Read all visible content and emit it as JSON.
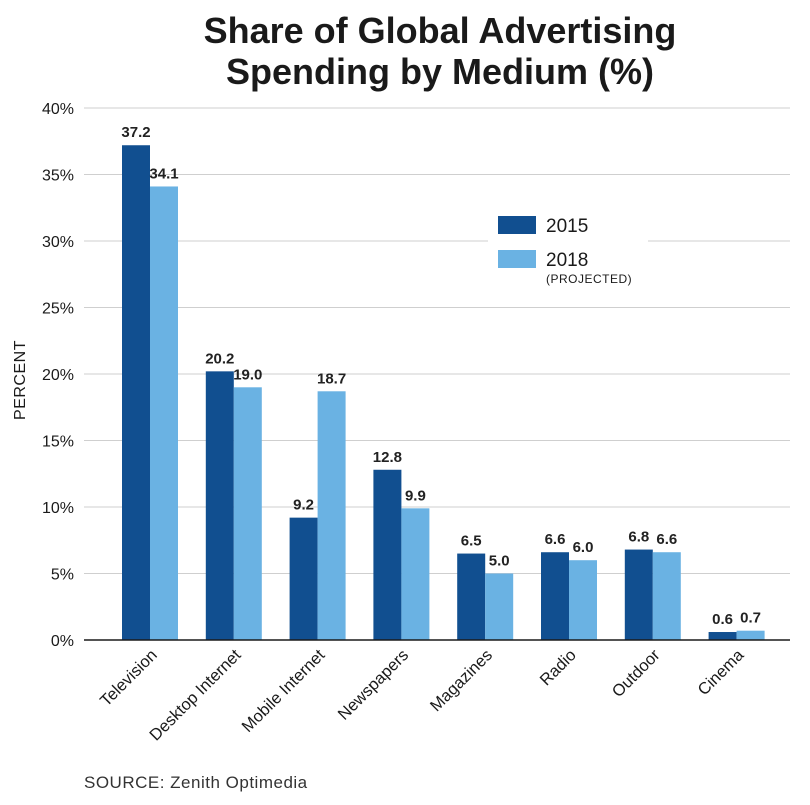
{
  "chart_data": {
    "type": "bar",
    "title_lines": [
      "Share of Global Advertising",
      "Spending by Medium (%)"
    ],
    "ylabel": "PERCENT",
    "xlabel": "",
    "ylim": [
      0,
      40
    ],
    "y_ticks": [
      0,
      5,
      10,
      15,
      20,
      25,
      30,
      35,
      40
    ],
    "y_tick_labels": [
      "0%",
      "5%",
      "10%",
      "15%",
      "20%",
      "25%",
      "30%",
      "35%",
      "40%"
    ],
    "grid": true,
    "legend_position": "top-right",
    "categories": [
      "Television",
      "Desktop Internet",
      "Mobile Internet",
      "Newspapers",
      "Magazines",
      "Radio",
      "Outdoor",
      "Cinema"
    ],
    "series": [
      {
        "name": "2015",
        "note": "",
        "color": "#114f90",
        "values": [
          37.2,
          20.2,
          9.2,
          12.8,
          6.5,
          6.6,
          6.8,
          0.6
        ],
        "labels": [
          "37.2",
          "20.2",
          "9.2",
          "12.8",
          "6.5",
          "6.6",
          "6.8",
          "0.6"
        ]
      },
      {
        "name": "2018",
        "note": "(PROJECTED)",
        "color": "#6ab2e3",
        "values": [
          34.1,
          19.0,
          18.7,
          9.9,
          5.0,
          6.0,
          6.6,
          0.7
        ],
        "labels": [
          "34.1",
          "19.0",
          "18.7",
          "9.9",
          "5.0",
          "6.0",
          "6.6",
          "0.7"
        ]
      }
    ],
    "source": "SOURCE: Zenith Optimedia"
  }
}
